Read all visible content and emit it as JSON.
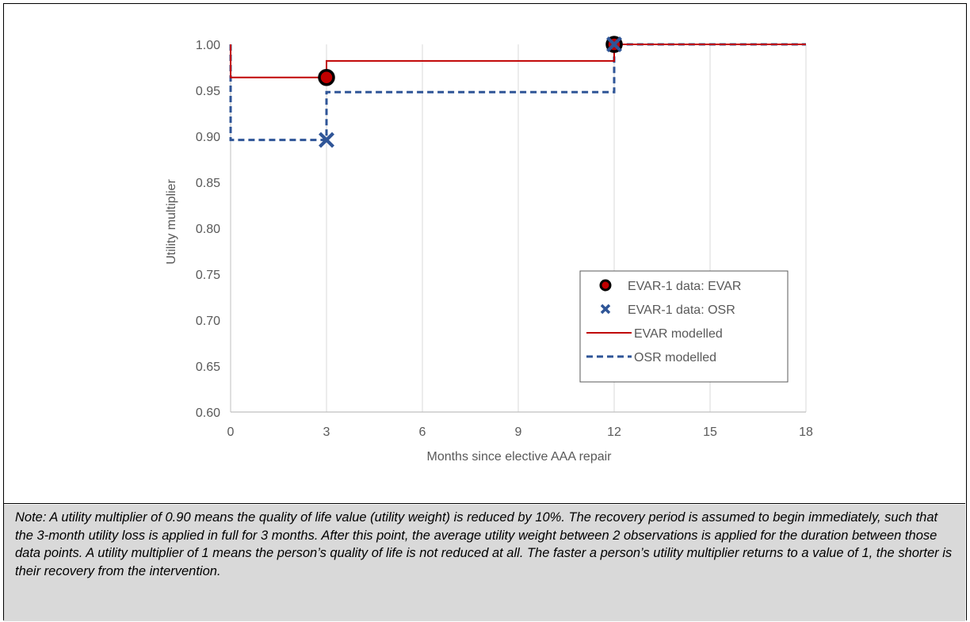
{
  "chart_data": {
    "type": "line",
    "xlabel": "Months since elective AAA repair",
    "ylabel": "Utility multiplier",
    "xlim": [
      0,
      18
    ],
    "ylim": [
      0.6,
      1.0
    ],
    "x_ticks": [
      "0",
      "3",
      "6",
      "9",
      "12",
      "15",
      "18"
    ],
    "y_ticks": [
      "0.60",
      "0.65",
      "0.70",
      "0.75",
      "0.80",
      "0.85",
      "0.90",
      "0.95",
      "1.00"
    ],
    "grid": "vertical",
    "legend_position": "bottom-right",
    "series": [
      {
        "name": "EVAR-1 data: EVAR",
        "kind": "points",
        "marker": "circle",
        "color": "#c00000",
        "edge": "#000000",
        "x": [
          3,
          12
        ],
        "y": [
          0.964,
          1.0
        ]
      },
      {
        "name": "EVAR-1 data: OSR",
        "kind": "points",
        "marker": "x",
        "color": "#2f5597",
        "x": [
          3,
          12
        ],
        "y": [
          0.896,
          1.0
        ]
      },
      {
        "name": "EVAR modelled",
        "kind": "step",
        "style": "solid",
        "color": "#c00000",
        "x": [
          0,
          0,
          3,
          3,
          12,
          12,
          18
        ],
        "y": [
          1.0,
          0.964,
          0.964,
          0.982,
          0.982,
          1.0,
          1.0
        ]
      },
      {
        "name": "OSR modelled",
        "kind": "step",
        "style": "dashed",
        "color": "#2f5597",
        "x": [
          0,
          0,
          3,
          3,
          12,
          12,
          18
        ],
        "y": [
          1.0,
          0.896,
          0.896,
          0.948,
          0.948,
          1.0,
          1.0
        ]
      }
    ]
  },
  "note": "Note: A utility multiplier of 0.90 means the quality of life value (utility weight) is reduced by 10%. The recovery period is assumed to begin immediately, such that the 3-month utility loss is applied in full for 3 months. After this point, the average utility weight between 2 observations is applied for the duration between those data points. A utility multiplier of 1 means the person’s quality of life is not reduced at all. The faster a person’s utility multiplier returns to a value of 1, the shorter is their recovery from the intervention."
}
